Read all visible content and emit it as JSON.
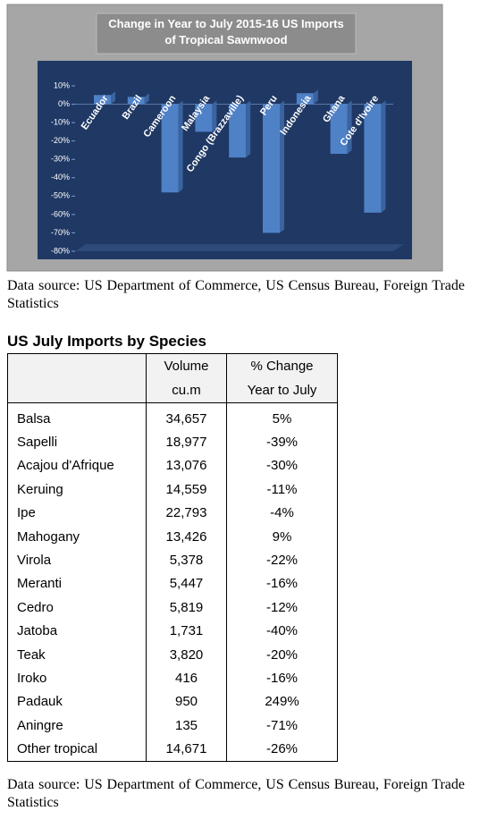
{
  "chart_data": {
    "type": "bar",
    "title": "Change in Year to July 2015-16 US Imports of Tropical Sawnwood",
    "categories": [
      "Ecuador",
      "Brazil",
      "Cameroon",
      "Malaysia",
      "Congo (Brazzaville)",
      "Peru",
      "Indonesia",
      "Ghana",
      "Cote d'Ivoire"
    ],
    "values": [
      5,
      4,
      -48,
      -15,
      -29,
      -70,
      6,
      -27,
      -59
    ],
    "color": "#4f81c7",
    "ylim": [
      -80,
      10
    ],
    "yticks": [
      {
        "value": 10,
        "label": "10%"
      },
      {
        "value": 0,
        "label": "0%"
      },
      {
        "value": -10,
        "label": "-10%"
      },
      {
        "value": -20,
        "label": "-20%"
      },
      {
        "value": -30,
        "label": "-30%"
      },
      {
        "value": -40,
        "label": "-40%"
      },
      {
        "value": -50,
        "label": "-50%"
      },
      {
        "value": -60,
        "label": "-60%"
      },
      {
        "value": -70,
        "label": "-70%"
      },
      {
        "value": -80,
        "label": "-80%"
      }
    ],
    "grid": false
  },
  "chart_source": "Data source: US Department of Commerce, US Census Bureau, Foreign Trade Statistics",
  "table": {
    "title": "US July Imports by Species",
    "header": [
      [
        "Volume",
        "cu.m"
      ],
      [
        "% Change",
        "Year to July"
      ]
    ],
    "rows": [
      [
        "Balsa",
        "34,657",
        "5%"
      ],
      [
        "Sapelli",
        "18,977",
        "-39%"
      ],
      [
        "Acajou d'Afrique",
        "13,076",
        "-30%"
      ],
      [
        "Keruing",
        "14,559",
        "-11%"
      ],
      [
        "Ipe",
        "22,793",
        "-4%"
      ],
      [
        "Mahogany",
        "13,426",
        "9%"
      ],
      [
        "Virola",
        "5,378",
        "-22%"
      ],
      [
        "Meranti",
        "5,447",
        "-16%"
      ],
      [
        "Cedro",
        "5,819",
        "-12%"
      ],
      [
        "Jatoba",
        "1,731",
        "-40%"
      ],
      [
        "Teak",
        "3,820",
        "-20%"
      ],
      [
        "Iroko",
        "416",
        "-16%"
      ],
      [
        "Padauk",
        "950",
        "249%"
      ],
      [
        "Aningre",
        "135",
        "-71%"
      ],
      [
        "Other tropical",
        "14,671",
        "-26%"
      ]
    ]
  },
  "table_source": "Data source: US Department of Commerce, US Census Bureau, Foreign Trade Statistics"
}
